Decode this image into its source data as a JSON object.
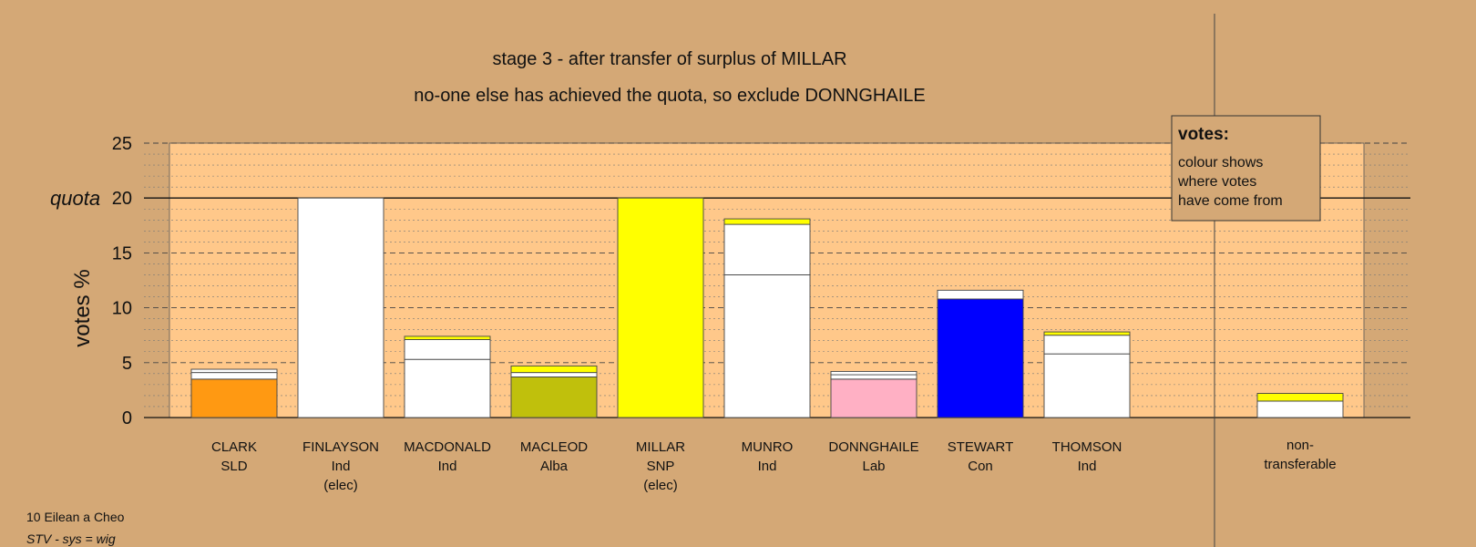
{
  "chart_data": {
    "type": "bar",
    "title": "stage 3 - after transfer of surplus of MILLAR",
    "subtitle": "no-one else has achieved the quota, so exclude DONNGHAILE",
    "ylabel": "votes %",
    "ylim": [
      0,
      25
    ],
    "yticks": [
      "0",
      "5",
      "10",
      "15",
      "20",
      "25"
    ],
    "quota": {
      "label": "quota",
      "value": 20
    },
    "categories": [
      {
        "name": "CLARK",
        "party": "SLD",
        "note": ""
      },
      {
        "name": "FINLAYSON",
        "party": "Ind",
        "note": "(elec)"
      },
      {
        "name": "MACDONALD",
        "party": "Ind",
        "note": ""
      },
      {
        "name": "MACLEOD",
        "party": "Alba",
        "note": ""
      },
      {
        "name": "MILLAR",
        "party": "SNP",
        "note": "(elec)"
      },
      {
        "name": "MUNRO",
        "party": "Ind",
        "note": ""
      },
      {
        "name": "DONNGHAILE",
        "party": "Lab",
        "note": ""
      },
      {
        "name": "STEWART",
        "party": "Con",
        "note": ""
      },
      {
        "name": "THOMSON",
        "party": "Ind",
        "note": ""
      }
    ],
    "bars": [
      {
        "segments": [
          {
            "value": 3.5,
            "color": "#ff9912"
          },
          {
            "value": 0.6,
            "color": "#ffffff"
          },
          {
            "value": 0.3,
            "color": "#ffffff"
          }
        ]
      },
      {
        "segments": [
          {
            "value": 20.0,
            "color": "#ffffff"
          }
        ]
      },
      {
        "segments": [
          {
            "value": 5.3,
            "color": "#ffffff"
          },
          {
            "value": 1.8,
            "color": "#ffffff"
          },
          {
            "value": 0.3,
            "color": "#ffff00"
          }
        ]
      },
      {
        "segments": [
          {
            "value": 3.7,
            "color": "#c0c00c"
          },
          {
            "value": 0.4,
            "color": "#ffffff"
          },
          {
            "value": 0.6,
            "color": "#ffff00"
          }
        ]
      },
      {
        "segments": [
          {
            "value": 20.0,
            "color": "#ffff00"
          }
        ]
      },
      {
        "segments": [
          {
            "value": 13.0,
            "color": "#ffffff"
          },
          {
            "value": 4.6,
            "color": "#ffffff"
          },
          {
            "value": 0.5,
            "color": "#ffff00"
          }
        ]
      },
      {
        "segments": [
          {
            "value": 3.5,
            "color": "#ffb0c4"
          },
          {
            "value": 0.4,
            "color": "#ffffff"
          },
          {
            "value": 0.3,
            "color": "#ffffff"
          }
        ]
      },
      {
        "segments": [
          {
            "value": 10.8,
            "color": "#0000ff"
          },
          {
            "value": 0.8,
            "color": "#ffffff"
          }
        ]
      },
      {
        "segments": [
          {
            "value": 5.8,
            "color": "#ffffff"
          },
          {
            "value": 1.7,
            "color": "#ffffff"
          },
          {
            "value": 0.3,
            "color": "#ffff00"
          }
        ]
      }
    ],
    "nontransferable": {
      "line1": "non-",
      "line2": "transferable",
      "segments": [
        {
          "value": 1.5,
          "color": "#ffffff"
        },
        {
          "value": 0.7,
          "color": "#ffff00"
        }
      ]
    },
    "legend": {
      "title": "votes:",
      "lines": [
        "colour shows",
        "where votes",
        "have come from"
      ],
      "placement": "top-right"
    }
  },
  "footer": {
    "ward": "10 Eilean a Cheo",
    "system": "STV - sys = wig"
  },
  "colors": {
    "background": "#d4a876",
    "plot_area": "#ffc88a",
    "outer_plot": "#d4a876"
  }
}
